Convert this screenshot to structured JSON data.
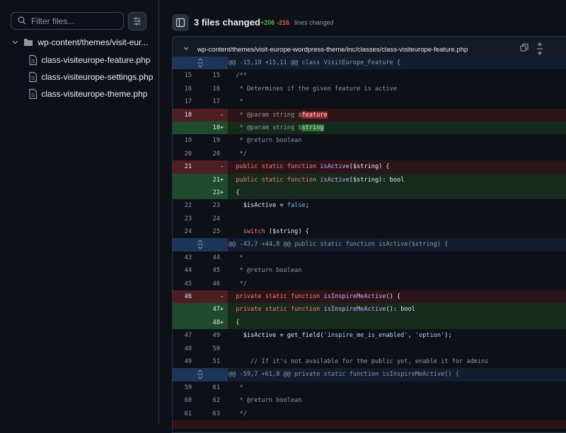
{
  "sidebar": {
    "filter_placeholder": "Filter files...",
    "folder": "wp-content/themes/visit-eur...",
    "files": [
      "class-visiteurope-feature.php",
      "class-visiteurope-settings.php",
      "class-visiteurope-theme.php"
    ]
  },
  "header": {
    "title": "3 files changed",
    "additions": "+206",
    "deletions": "-216",
    "caption": "lines changed"
  },
  "file": {
    "path": "wp-content/themes/visit-europe-wordpress-theme/inc/classes/class-visiteurope-feature.php",
    "lines": [
      {
        "kind": "hunk",
        "code": [
          {
            "text": "@@ -15,10 +15,11 @@ class VisitEurope_Feature {",
            "color": "#9198a1"
          }
        ]
      },
      {
        "kind": "context",
        "old": 15,
        "new": 15,
        "code": [
          {
            "text": "  /**",
            "color": "#9198a1"
          }
        ]
      },
      {
        "kind": "context",
        "old": 16,
        "new": 16,
        "code": [
          {
            "text": "   * Determines if the given feature is active",
            "color": "#9198a1"
          }
        ]
      },
      {
        "kind": "context",
        "old": 17,
        "new": 17,
        "code": [
          {
            "text": "   *",
            "color": "#9198a1"
          }
        ]
      },
      {
        "kind": "del",
        "old": 18,
        "sign": "-",
        "code": [
          {
            "text": "   * @param string $",
            "color": "#9198a1"
          },
          {
            "text": "feature",
            "color": "#ffdcd7",
            "bg": "#8e2b2f"
          }
        ]
      },
      {
        "kind": "add",
        "new": 18,
        "sign": "+",
        "code": [
          {
            "text": "   * @param string $",
            "color": "#9198a1"
          },
          {
            "text": "string",
            "color": "#aff5b4",
            "bg": "#2e6a3a"
          }
        ]
      },
      {
        "kind": "context",
        "old": 19,
        "new": 19,
        "code": [
          {
            "text": "   * @return boolean",
            "color": "#9198a1"
          }
        ]
      },
      {
        "kind": "context",
        "old": 20,
        "new": 20,
        "code": [
          {
            "text": "   */",
            "color": "#9198a1"
          }
        ]
      },
      {
        "kind": "del",
        "old": 21,
        "sign": "-",
        "code": [
          {
            "text": "  public static function ",
            "color": "#ff7b72"
          },
          {
            "text": "isActive",
            "color": "#d2a8ff"
          },
          {
            "text": "($string) {",
            "color": "#e6edf3"
          }
        ]
      },
      {
        "kind": "add",
        "new": 21,
        "sign": "+",
        "code": [
          {
            "text": "  public static function ",
            "color": "#ff7b72"
          },
          {
            "text": "isActive",
            "color": "#d2a8ff"
          },
          {
            "text": "($string): bool",
            "color": "#e6edf3"
          }
        ]
      },
      {
        "kind": "add",
        "new": 22,
        "sign": "+",
        "code": [
          {
            "text": "  {",
            "color": "#e6edf3"
          }
        ]
      },
      {
        "kind": "context",
        "old": 22,
        "new": 23,
        "code": [
          {
            "text": "    $isActive = ",
            "color": "#e6edf3"
          },
          {
            "text": "false",
            "color": "#79c0ff"
          },
          {
            "text": ";",
            "color": "#e6edf3"
          }
        ]
      },
      {
        "kind": "context",
        "old": 23,
        "new": 24,
        "code": []
      },
      {
        "kind": "context",
        "old": 24,
        "new": 25,
        "code": [
          {
            "text": "    ",
            "color": "#e6edf3"
          },
          {
            "text": "switch",
            "color": "#ff7b72"
          },
          {
            "text": " ($string) {",
            "color": "#e6edf3"
          }
        ]
      },
      {
        "kind": "hunk",
        "code": [
          {
            "text": "@@ -43,7 +44,8 @@ public static function isActive($string) {",
            "color": "#9198a1"
          }
        ]
      },
      {
        "kind": "context",
        "old": 43,
        "new": 44,
        "code": [
          {
            "text": "   *",
            "color": "#9198a1"
          }
        ]
      },
      {
        "kind": "context",
        "old": 44,
        "new": 45,
        "code": [
          {
            "text": "   * @return boolean",
            "color": "#9198a1"
          }
        ]
      },
      {
        "kind": "context",
        "old": 45,
        "new": 46,
        "code": [
          {
            "text": "   */",
            "color": "#9198a1"
          }
        ]
      },
      {
        "kind": "del",
        "old": 46,
        "sign": "-",
        "code": [
          {
            "text": "  private static function ",
            "color": "#ff7b72"
          },
          {
            "text": "isInspireMeActive",
            "color": "#d2a8ff"
          },
          {
            "text": "() {",
            "color": "#e6edf3"
          }
        ]
      },
      {
        "kind": "add",
        "new": 47,
        "sign": "+",
        "code": [
          {
            "text": "  private static function ",
            "color": "#ff7b72"
          },
          {
            "text": "isInspireMeActive",
            "color": "#d2a8ff"
          },
          {
            "text": "(): bool",
            "color": "#e6edf3"
          }
        ]
      },
      {
        "kind": "add",
        "new": 48,
        "sign": "+",
        "code": [
          {
            "text": "  {",
            "color": "#e6edf3"
          }
        ]
      },
      {
        "kind": "context",
        "old": 47,
        "new": 49,
        "code": [
          {
            "text": "    $isActive = get_field(",
            "color": "#e6edf3"
          },
          {
            "text": "'inspire_me_is_enabled'",
            "color": "#a5d6ff"
          },
          {
            "text": ", ",
            "color": "#e6edf3"
          },
          {
            "text": "'option'",
            "color": "#a5d6ff"
          },
          {
            "text": ");",
            "color": "#e6edf3"
          }
        ]
      },
      {
        "kind": "context",
        "old": 48,
        "new": 50,
        "code": []
      },
      {
        "kind": "context",
        "old": 49,
        "new": 51,
        "code": [
          {
            "text": "      // If it's not available for the public yet, enable it for admins",
            "color": "#9198a1"
          }
        ]
      },
      {
        "kind": "hunk",
        "code": [
          {
            "text": "@@ -59,7 +61,8 @@ private static function isInspireMeActive() {",
            "color": "#9198a1"
          }
        ]
      },
      {
        "kind": "context",
        "old": 59,
        "new": 61,
        "code": [
          {
            "text": "   *",
            "color": "#9198a1"
          }
        ]
      },
      {
        "kind": "context",
        "old": 60,
        "new": 62,
        "code": [
          {
            "text": "   * @return boolean",
            "color": "#9198a1"
          }
        ]
      },
      {
        "kind": "context",
        "old": 61,
        "new": 63,
        "code": [
          {
            "text": "   */",
            "color": "#9198a1"
          }
        ]
      }
    ]
  }
}
